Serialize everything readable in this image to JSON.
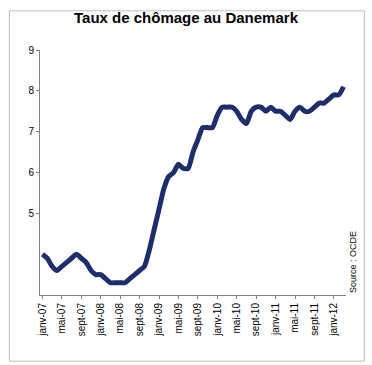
{
  "chart_data": {
    "type": "line",
    "title": "Taux de chômage au Danemark",
    "source": "Source : OCDE",
    "color": "#1f2d6b",
    "grid": false,
    "categories": [
      "janv-07",
      null,
      null,
      null,
      "mai-07",
      null,
      null,
      null,
      "sept-07",
      null,
      null,
      null,
      "janv-08",
      null,
      null,
      null,
      "mai-08",
      null,
      null,
      null,
      "sept-08",
      null,
      null,
      null,
      "janv-09",
      null,
      null,
      null,
      "mai-09",
      null,
      null,
      null,
      "sept-09",
      null,
      null,
      null,
      "janv-10",
      null,
      null,
      null,
      "mai-10",
      null,
      null,
      null,
      "sept-10",
      null,
      null,
      null,
      "janv-11",
      null,
      null,
      null,
      "mai-11",
      null,
      null,
      null,
      "sept-11",
      null,
      null,
      null,
      "janv-12",
      null,
      null
    ],
    "values": [
      4.0,
      3.9,
      3.7,
      3.6,
      3.7,
      3.8,
      3.9,
      4.0,
      3.9,
      3.8,
      3.6,
      3.5,
      3.5,
      3.4,
      3.3,
      3.3,
      3.3,
      3.3,
      3.4,
      3.5,
      3.6,
      3.7,
      4.1,
      4.6,
      5.1,
      5.6,
      5.9,
      6.0,
      6.2,
      6.1,
      6.1,
      6.5,
      6.8,
      7.1,
      7.1,
      7.1,
      7.4,
      7.6,
      7.6,
      7.6,
      7.5,
      7.3,
      7.2,
      7.5,
      7.6,
      7.6,
      7.5,
      7.6,
      7.5,
      7.5,
      7.4,
      7.3,
      7.5,
      7.6,
      7.5,
      7.5,
      7.6,
      7.7,
      7.7,
      7.8,
      7.9,
      7.9,
      8.1
    ],
    "ylim": [
      3,
      9
    ],
    "yticks": [
      5,
      6,
      7,
      8,
      9
    ]
  }
}
